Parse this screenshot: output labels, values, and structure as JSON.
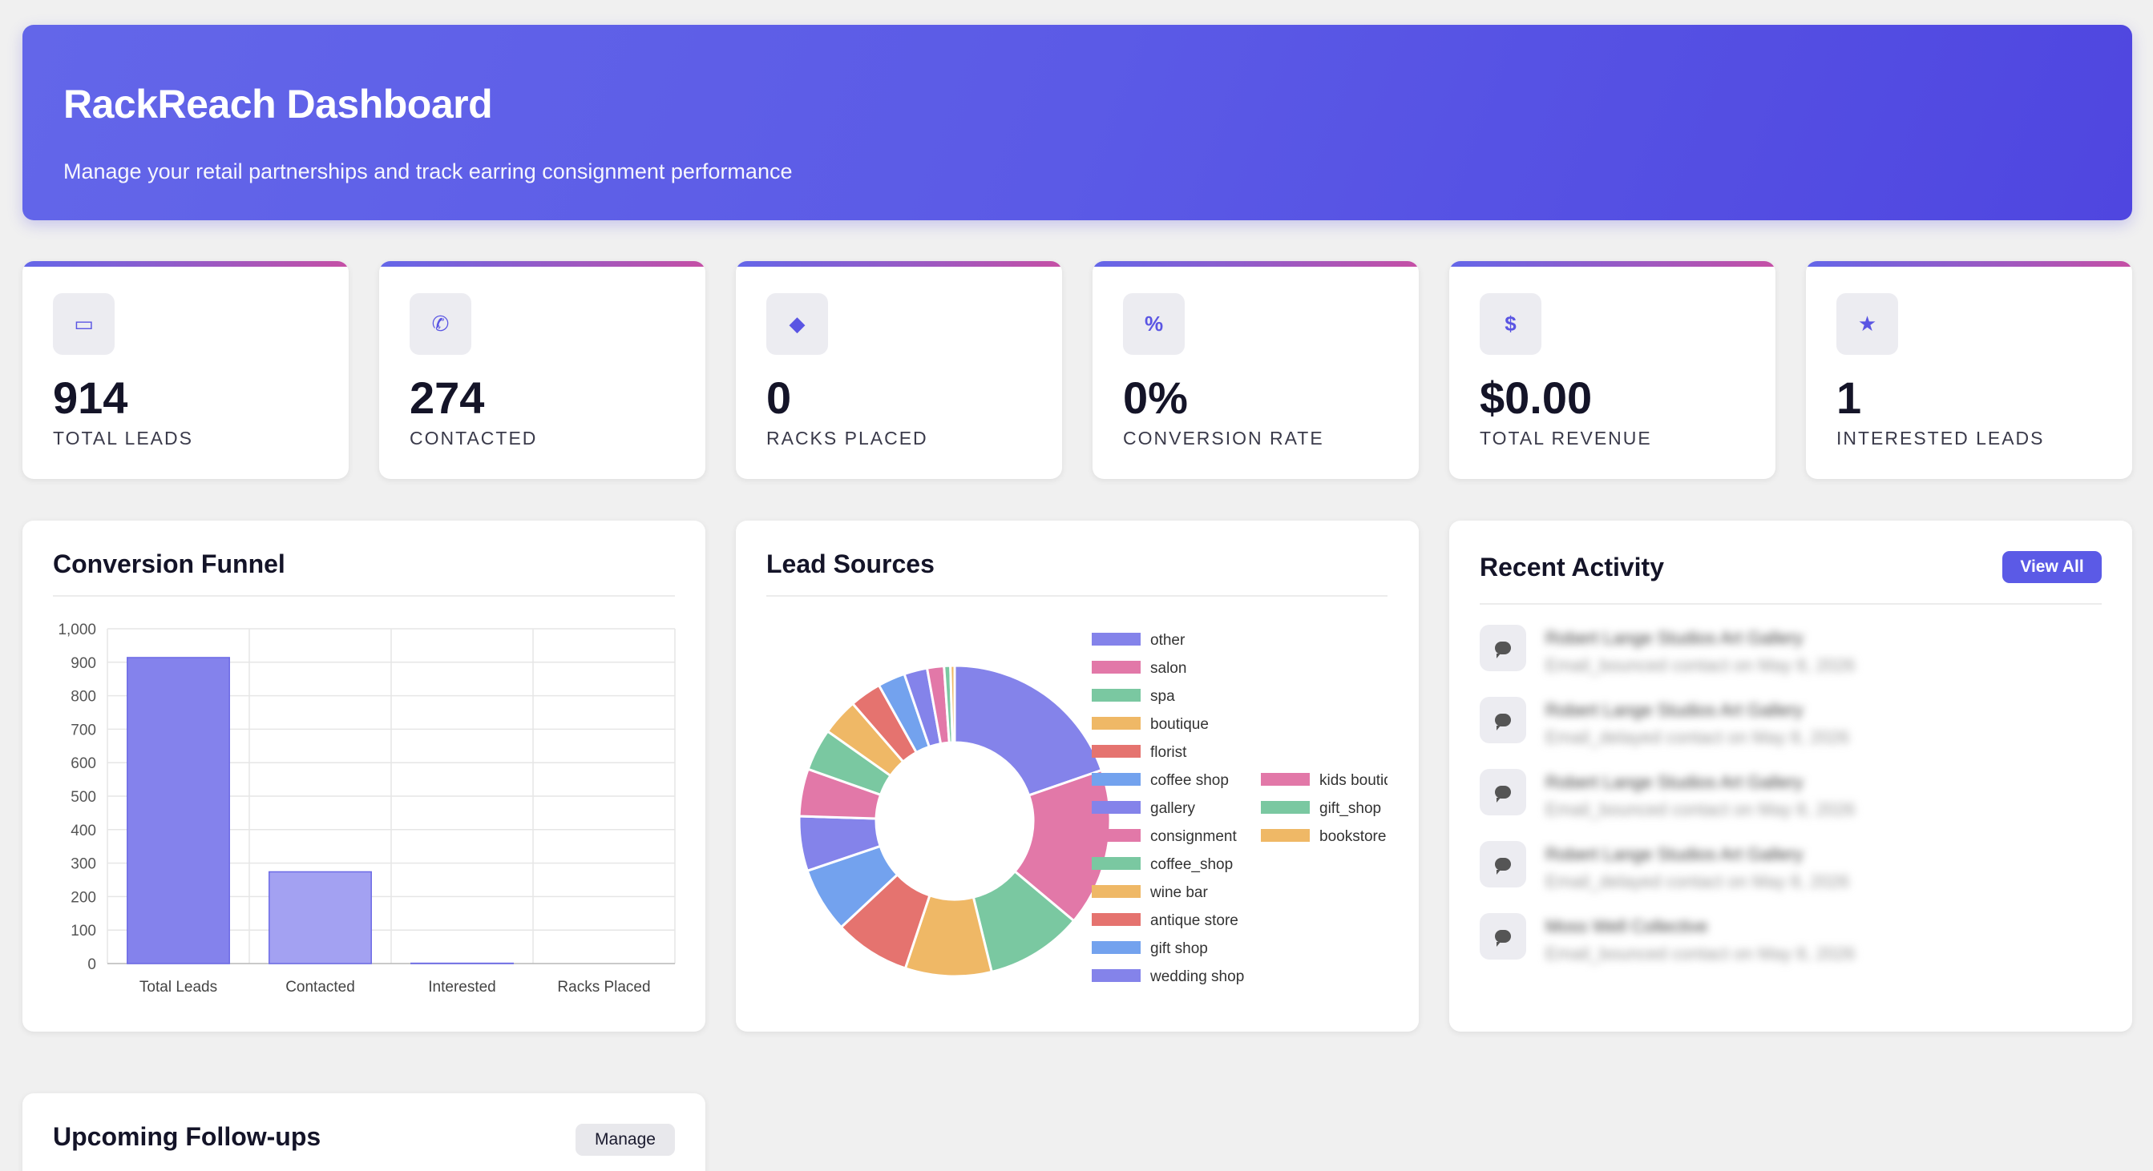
{
  "header": {
    "title": "RackReach Dashboard",
    "subtitle": "Manage your retail partnerships and track earring consignment performance"
  },
  "stats": [
    {
      "icon": "store-icon",
      "glyph": "▭",
      "value": "914",
      "label": "TOTAL LEADS"
    },
    {
      "icon": "phone-icon",
      "glyph": "✆",
      "value": "274",
      "label": "CONTACTED"
    },
    {
      "icon": "gem-icon",
      "glyph": "◆",
      "value": "0",
      "label": "RACKS PLACED"
    },
    {
      "icon": "percent-icon",
      "glyph": "%",
      "value": "0%",
      "label": "CONVERSION RATE"
    },
    {
      "icon": "dollar-icon",
      "glyph": "$",
      "value": "$0.00",
      "label": "TOTAL REVENUE"
    },
    {
      "icon": "star-icon",
      "glyph": "★",
      "value": "1",
      "label": "INTERESTED LEADS"
    }
  ],
  "funnel": {
    "title": "Conversion Funnel"
  },
  "sources": {
    "title": "Lead Sources"
  },
  "activity": {
    "title": "Recent Activity",
    "view_all": "View All",
    "items": [
      {
        "title": "Robert Lange Studios Art Gallery",
        "sub": "Email_bounced contact on May 8, 2026"
      },
      {
        "title": "Robert Lange Studios Art Gallery",
        "sub": "Email_delayed contact on May 8, 2026"
      },
      {
        "title": "Robert Lange Studios Art Gallery",
        "sub": "Email_bounced contact on May 8, 2026"
      },
      {
        "title": "Robert Lange Studios Art Gallery",
        "sub": "Email_delayed contact on May 8, 2026"
      },
      {
        "title": "Moss Well Collective",
        "sub": "Email_bounced contact on May 8, 2026"
      }
    ]
  },
  "followups": {
    "title": "Upcoming Follow-ups",
    "manage": "Manage"
  },
  "chart_data": [
    {
      "type": "bar",
      "categories": [
        "Total Leads",
        "Contacted",
        "Interested",
        "Racks Placed"
      ],
      "values": [
        914,
        274,
        1,
        0
      ],
      "ylim": [
        0,
        1000
      ],
      "yticks": [
        0,
        100,
        200,
        300,
        400,
        500,
        600,
        700,
        800,
        900,
        1000
      ],
      "ytick_labels": [
        "0",
        "100",
        "200",
        "300",
        "400",
        "500",
        "600",
        "700",
        "800",
        "900",
        "1,000"
      ],
      "bar_colors": [
        "#8482ec",
        "#a3a1f2",
        "#8482ec",
        "#a3a1f2"
      ],
      "grid": true
    },
    {
      "type": "pie",
      "donut": true,
      "legend_position": "right",
      "slices": [
        {
          "label": "other",
          "value": 180,
          "color": "#8483ea"
        },
        {
          "label": "salon",
          "value": 150,
          "color": "#e278a8"
        },
        {
          "label": "spa",
          "value": 92,
          "color": "#7ac8a1"
        },
        {
          "label": "boutique",
          "value": 82,
          "color": "#efb866"
        },
        {
          "label": "florist",
          "value": 72,
          "color": "#e5736f"
        },
        {
          "label": "coffee shop",
          "value": 62,
          "color": "#73a2ee"
        },
        {
          "label": "gallery",
          "value": 52,
          "color": "#8483ea"
        },
        {
          "label": "consignment",
          "value": 45,
          "color": "#e278a8"
        },
        {
          "label": "coffee_shop",
          "value": 40,
          "color": "#7ac8a1"
        },
        {
          "label": "wine bar",
          "value": 35,
          "color": "#efb866"
        },
        {
          "label": "antique store",
          "value": 30,
          "color": "#e5736f"
        },
        {
          "label": "gift shop",
          "value": 26,
          "color": "#73a2ee"
        },
        {
          "label": "wedding shop",
          "value": 22,
          "color": "#8483ea"
        },
        {
          "label": "kids boutique",
          "value": 16,
          "color": "#e278a8"
        },
        {
          "label": "gift_shop",
          "value": 6,
          "color": "#7ac8a1"
        },
        {
          "label": "bookstore",
          "value": 4,
          "color": "#efb866"
        }
      ]
    }
  ]
}
